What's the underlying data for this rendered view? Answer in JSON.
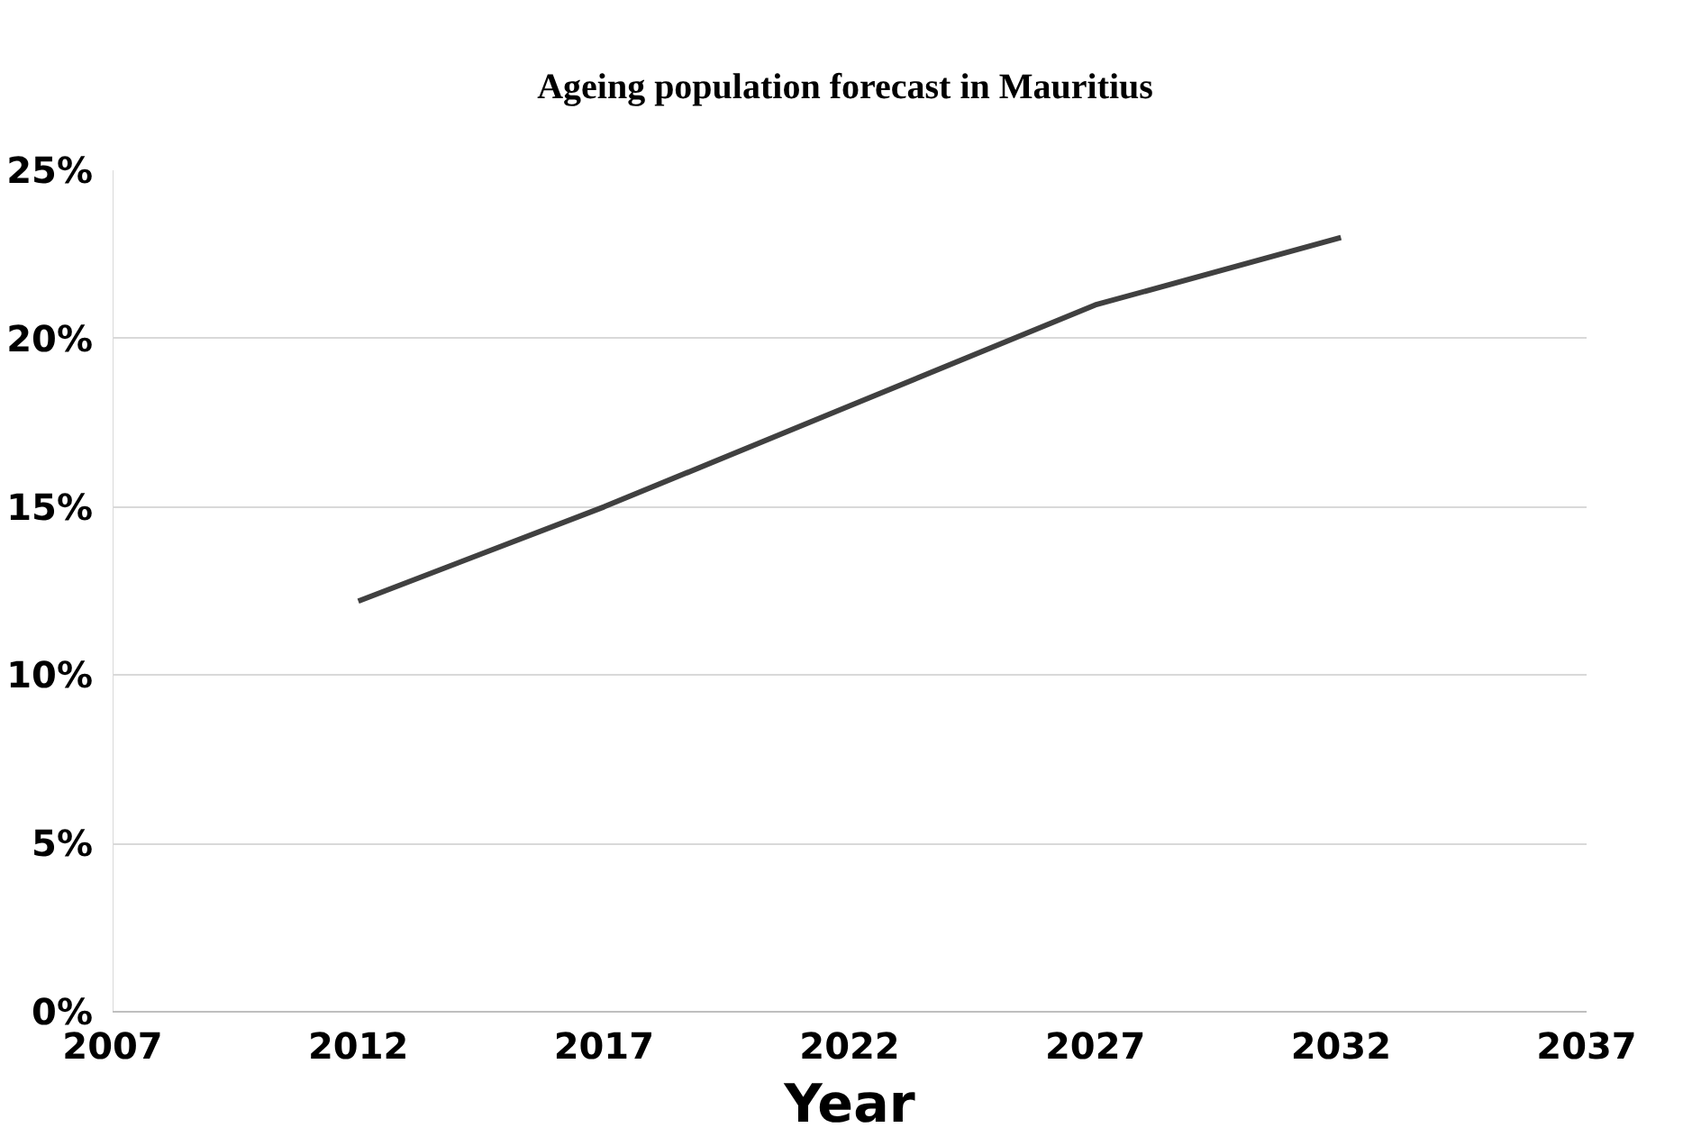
{
  "chart_data": {
    "type": "line",
    "title": "Ageing population  forecast in Mauritius",
    "xlabel": "Year",
    "x": [
      2012,
      2017,
      2022,
      2027,
      2032
    ],
    "series": [
      {
        "color": "#404040",
        "values": [
          12.2,
          15.0,
          18.0,
          21.0,
          23.0
        ]
      }
    ],
    "xlim": [
      2007,
      2037
    ],
    "xticks": [
      2007,
      2012,
      2017,
      2022,
      2027,
      2032,
      2037
    ],
    "ylim": [
      0,
      25
    ],
    "yticks": [
      {
        "value": 0,
        "label": "0%"
      },
      {
        "value": 5,
        "label": "5%"
      },
      {
        "value": 10,
        "label": "10%"
      },
      {
        "value": 15,
        "label": "15%"
      },
      {
        "value": 20,
        "label": "20%"
      },
      {
        "value": 25,
        "label": "25%"
      }
    ],
    "grid": "y",
    "marker": "none",
    "line_style": "solid"
  }
}
